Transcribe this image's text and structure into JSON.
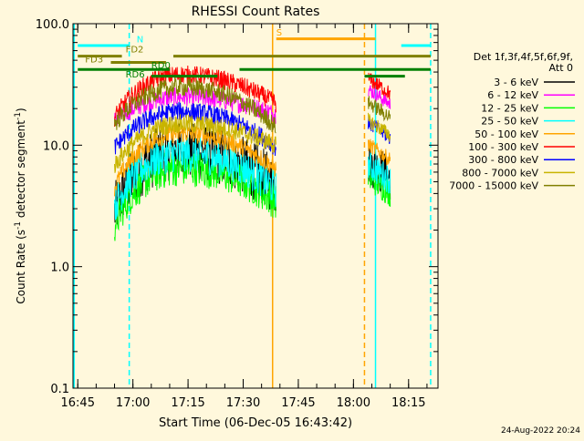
{
  "chart_data": {
    "type": "line",
    "title": "RHESSI Count Rates",
    "xlabel": "Start Time (06-Dec-05 16:43:42)",
    "ylabel_main": "Count Rate (s",
    "ylabel_sup1": "-1",
    "ylabel_mid": " detector segment",
    "ylabel_sup2": "-1",
    "ylabel_end": ")",
    "y_scale": "log",
    "ylim": [
      0.1,
      100.0
    ],
    "xlim": [
      "16:43:42",
      "18:23:00"
    ],
    "x_ticks": [
      "16:45",
      "17:00",
      "17:15",
      "17:30",
      "17:45",
      "18:00",
      "18:15"
    ],
    "y_ticks": [
      "0.1",
      "1.0",
      "10.0",
      "100.0"
    ],
    "legend_title_1": "Det 1f,3f,4f,5f,6f,9f,",
    "legend_title_2": "Att 0",
    "legend_position": "right",
    "timestamp": "24-Aug-2022 20:24",
    "series": [
      {
        "name": "3 - 6 keV",
        "color": "#000000",
        "start_level": 2.8,
        "peak_level": 9,
        "end_level": 4.5
      },
      {
        "name": "6 - 12 keV",
        "color": "#ff00ff",
        "start_level": 16,
        "peak_level": 25,
        "end_level": 18
      },
      {
        "name": "12 - 25 keV",
        "color": "#00ff00",
        "start_level": 2.2,
        "peak_level": 6.5,
        "end_level": 3.4
      },
      {
        "name": "25 - 50 keV",
        "color": "#00ffff",
        "start_level": 3.2,
        "peak_level": 8.5,
        "end_level": 4.3
      },
      {
        "name": "50 - 100 keV",
        "color": "#ffa500",
        "start_level": 4.5,
        "peak_level": 12.5,
        "end_level": 6.3
      },
      {
        "name": "100 - 300 keV",
        "color": "#ff0000",
        "start_level": 17,
        "peak_level": 38,
        "end_level": 22
      },
      {
        "name": "300 - 800 keV",
        "color": "#0000ff",
        "start_level": 9.5,
        "peak_level": 19,
        "end_level": 9.5
      },
      {
        "name": "800 - 7000 keV",
        "color": "#c8b400",
        "start_level": 6.8,
        "peak_level": 15,
        "end_level": 10
      },
      {
        "name": "7000 - 15000 keV",
        "color": "#808000",
        "start_level": 15,
        "peak_level": 30,
        "end_level": 14
      }
    ],
    "annotations": [
      {
        "label": "N",
        "color": "#00ffff",
        "time": "17:01",
        "level": 70
      },
      {
        "label": "S",
        "color": "#ffa500",
        "time": "17:39",
        "level": 80
      },
      {
        "label": "FD2",
        "color": "#808000",
        "time": "16:58",
        "level": 58
      },
      {
        "label": "FD3",
        "color": "#808000",
        "time": "16:47",
        "level": 48
      },
      {
        "label": "RD0",
        "color": "#008000",
        "time": "17:05",
        "level": 43
      },
      {
        "label": "RD6",
        "color": "#008000",
        "time": "16:58",
        "level": 36
      }
    ],
    "state_bars": [
      {
        "label": "N",
        "color": "#00ffff",
        "level": 66,
        "segments": [
          [
            "16:45",
            "16:59"
          ],
          [
            "18:13",
            "18:21"
          ]
        ]
      },
      {
        "label": "S",
        "color": "#ffa500",
        "level": 75,
        "segments": [
          [
            "17:39",
            "18:06"
          ]
        ]
      },
      {
        "label": "FD2",
        "color": "#808000",
        "level": 54,
        "segments": [
          [
            "16:45",
            "16:57"
          ],
          [
            "17:11",
            "18:21"
          ]
        ]
      },
      {
        "label": "FD3",
        "color": "#808000",
        "level": 48,
        "segments": [
          [
            "16:54",
            "17:09"
          ]
        ]
      },
      {
        "label": "RD0",
        "color": "#008000",
        "level": 42,
        "segments": [
          [
            "16:45",
            "17:10"
          ],
          [
            "17:29",
            "18:21"
          ]
        ]
      },
      {
        "label": "RD6",
        "color": "#008000",
        "level": 37,
        "segments": [
          [
            "17:05",
            "17:23"
          ],
          [
            "18:03",
            "18:14"
          ]
        ]
      }
    ],
    "vlines": [
      {
        "time": "16:44",
        "color": "#00ffff",
        "style": "solid"
      },
      {
        "time": "16:59",
        "color": "#00ffff",
        "style": "dashed"
      },
      {
        "time": "17:38",
        "color": "#ffa500",
        "style": "solid"
      },
      {
        "time": "18:03",
        "color": "#ffa500",
        "style": "dashed"
      },
      {
        "time": "18:06",
        "color": "#00ffff",
        "style": "solid"
      },
      {
        "time": "18:21",
        "color": "#00ffff",
        "style": "dashed"
      }
    ]
  }
}
